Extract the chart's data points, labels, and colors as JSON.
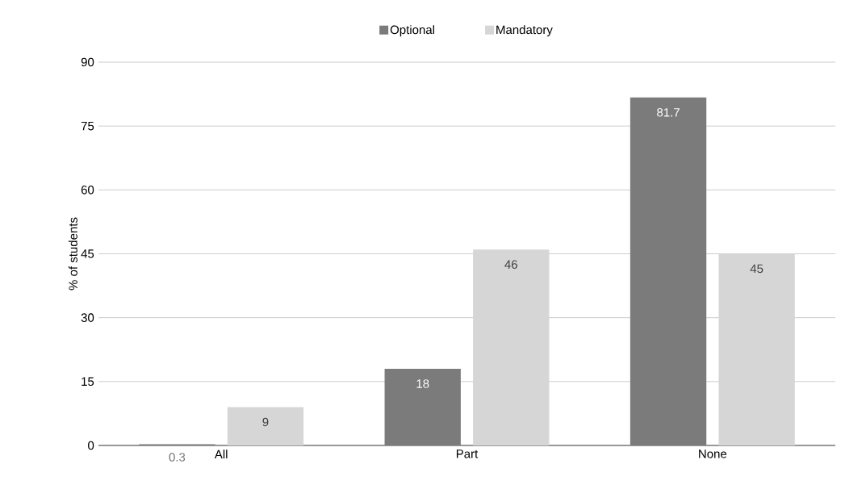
{
  "chart_data": {
    "type": "bar",
    "ylabel": "% of students",
    "categories": [
      "All",
      "Part",
      "None"
    ],
    "series": [
      {
        "name": "Optional",
        "color": "#7b7b7b",
        "values": [
          0.3,
          18,
          81.7
        ]
      },
      {
        "name": "Mandatory",
        "color": "#d6d6d6",
        "values": [
          9,
          46,
          45
        ]
      }
    ],
    "ylim": [
      0,
      90
    ],
    "yticks": [
      0,
      15,
      30,
      45,
      60,
      75,
      90
    ],
    "grid": "y",
    "legend": "top",
    "data_labels": true
  }
}
